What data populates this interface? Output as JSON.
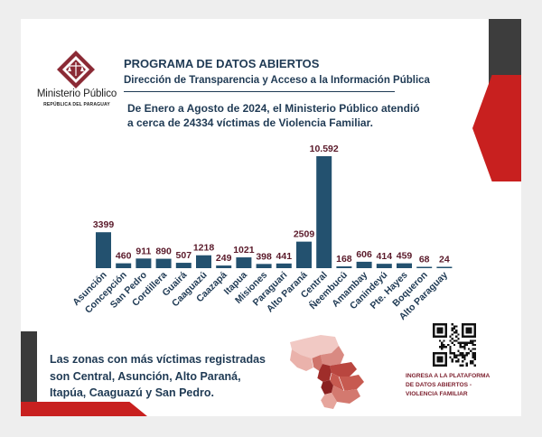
{
  "organization": {
    "name": "Ministerio Público",
    "subname": "REPÚBLICA DEL PARAGUAY"
  },
  "header": {
    "title": "PROGRAMA DE DATOS ABIERTOS",
    "subtitle": "Dirección de Transparencia y Acceso a la Información Pública"
  },
  "intro": {
    "line1": "De Enero a Agosto de 2024, el Ministerio Público atendió",
    "line2": "a cerca de 24334 víctimas de Violencia Familiar."
  },
  "chart_data": {
    "type": "bar",
    "categories": [
      "Asunción",
      "Concepción",
      "San Pedro",
      "Cordillera",
      "Guairá",
      "Caaguazú",
      "Caazapá",
      "Itapua",
      "Misiones",
      "Paraguari",
      "Alto Paraná",
      "Central",
      "Ñeembucú",
      "Amambay",
      "Canindeyú",
      "Pte. Hayes",
      "Boqueron",
      "Alto Paraguay"
    ],
    "values": [
      3399,
      460,
      911,
      890,
      507,
      1218,
      249,
      1021,
      398,
      441,
      2509,
      10592,
      168,
      606,
      414,
      459,
      68,
      24
    ],
    "value_labels": [
      "3399",
      "460",
      "911",
      "890",
      "507",
      "1218",
      "249",
      "1021",
      "398",
      "441",
      "2509",
      "10.592",
      "168",
      "606",
      "414",
      "459",
      "68",
      "24"
    ],
    "xlabel": "",
    "ylabel": "",
    "grid": false,
    "colors": {
      "bar": "#23516f",
      "label": "#5a1a2a",
      "tick": "#1f3a54"
    }
  },
  "bottom": {
    "line1": "Las zonas con más víctimas registradas",
    "line2": "son Central, Asunción, Alto Paraná,",
    "line3": "Itapúa, Caaguazú y San Pedro."
  },
  "qr": {
    "caption_line1": "INGRESA A LA PLATAFORMA",
    "caption_line2": "DE DATOS ABIERTOS -",
    "caption_line3": "VIOLENCIA FAMILIAR"
  },
  "theme": {
    "accent_red": "#c8201f",
    "dark_grey": "#3d3d3d",
    "navy": "#1f3a54",
    "maroon": "#7b1d2b"
  }
}
